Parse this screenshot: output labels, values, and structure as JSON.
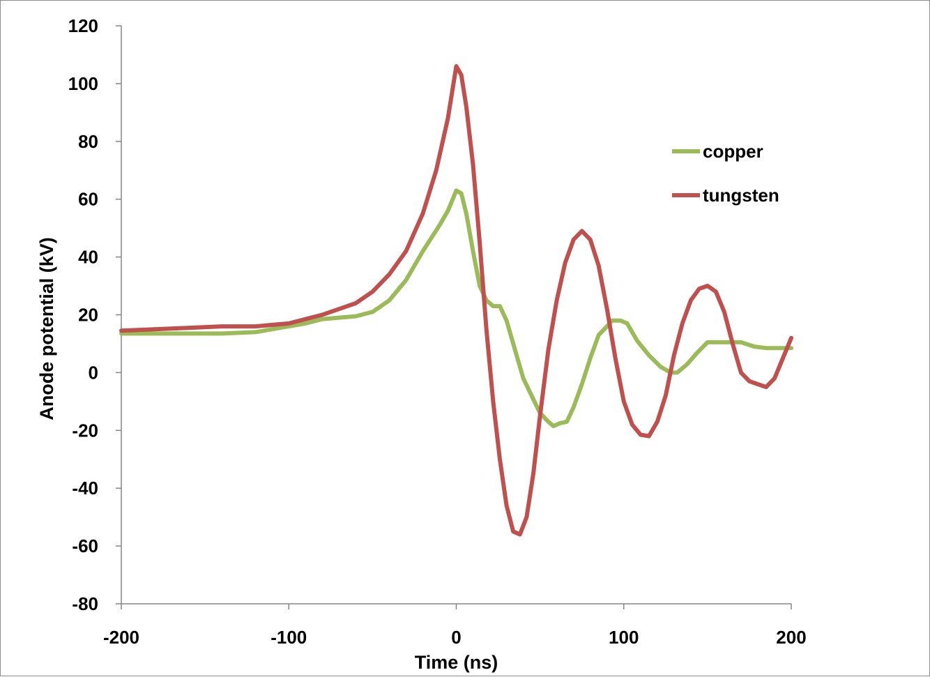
{
  "chart_data": {
    "type": "line",
    "title": "",
    "xlabel": "Time (ns)",
    "ylabel": "Anode potential (kV)",
    "xlim": [
      -200,
      200
    ],
    "ylim": [
      -80,
      120
    ],
    "x_ticks": [
      -200,
      -100,
      0,
      100,
      200
    ],
    "y_ticks": [
      -80,
      -60,
      -40,
      -20,
      0,
      20,
      40,
      60,
      80,
      100,
      120
    ],
    "x_tick_labels": [
      "-200",
      "-100",
      "0",
      "100",
      "200"
    ],
    "y_tick_labels": [
      "-80",
      "-60",
      "-40",
      "-20",
      "0",
      "20",
      "40",
      "60",
      "80",
      "100",
      "120"
    ],
    "grid": false,
    "legend_position": "right",
    "series": [
      {
        "name": "copper",
        "color": "#9bbb59",
        "points": [
          [
            -200,
            13.5
          ],
          [
            -180,
            13.5
          ],
          [
            -160,
            13.5
          ],
          [
            -140,
            13.5
          ],
          [
            -120,
            14
          ],
          [
            -100,
            16
          ],
          [
            -90,
            17
          ],
          [
            -80,
            18.5
          ],
          [
            -70,
            19
          ],
          [
            -60,
            19.5
          ],
          [
            -50,
            21
          ],
          [
            -40,
            25
          ],
          [
            -30,
            32
          ],
          [
            -20,
            42
          ],
          [
            -10,
            51
          ],
          [
            -5,
            56
          ],
          [
            0,
            63
          ],
          [
            3,
            62
          ],
          [
            6,
            55
          ],
          [
            10,
            42
          ],
          [
            14,
            30
          ],
          [
            18,
            25
          ],
          [
            22,
            23
          ],
          [
            26,
            23
          ],
          [
            30,
            18
          ],
          [
            35,
            8
          ],
          [
            40,
            -2
          ],
          [
            45,
            -8
          ],
          [
            50,
            -14
          ],
          [
            55,
            -17
          ],
          [
            58,
            -18.5
          ],
          [
            62,
            -17.5
          ],
          [
            66,
            -17
          ],
          [
            70,
            -12
          ],
          [
            75,
            -4
          ],
          [
            80,
            5
          ],
          [
            85,
            13
          ],
          [
            90,
            16
          ],
          [
            93,
            18
          ],
          [
            98,
            18
          ],
          [
            102,
            17
          ],
          [
            108,
            11
          ],
          [
            115,
            6
          ],
          [
            122,
            2
          ],
          [
            128,
            0
          ],
          [
            132,
            0
          ],
          [
            138,
            3
          ],
          [
            144,
            7
          ],
          [
            150,
            10.5
          ],
          [
            160,
            10.5
          ],
          [
            170,
            10.5
          ],
          [
            178,
            9
          ],
          [
            185,
            8.5
          ],
          [
            192,
            8.5
          ],
          [
            200,
            8.5
          ]
        ]
      },
      {
        "name": "tungsten",
        "color": "#c0504d",
        "points": [
          [
            -200,
            14.5
          ],
          [
            -180,
            15
          ],
          [
            -160,
            15.5
          ],
          [
            -140,
            16
          ],
          [
            -120,
            16
          ],
          [
            -100,
            17
          ],
          [
            -90,
            18.5
          ],
          [
            -80,
            20
          ],
          [
            -70,
            22
          ],
          [
            -60,
            24
          ],
          [
            -50,
            28
          ],
          [
            -40,
            34
          ],
          [
            -30,
            42
          ],
          [
            -20,
            55
          ],
          [
            -12,
            70
          ],
          [
            -5,
            88
          ],
          [
            0,
            106
          ],
          [
            3,
            103
          ],
          [
            6,
            92
          ],
          [
            10,
            72
          ],
          [
            14,
            45
          ],
          [
            18,
            15
          ],
          [
            22,
            -10
          ],
          [
            26,
            -30
          ],
          [
            30,
            -46
          ],
          [
            34,
            -55
          ],
          [
            38,
            -56
          ],
          [
            42,
            -50
          ],
          [
            46,
            -35
          ],
          [
            50,
            -15
          ],
          [
            55,
            8
          ],
          [
            60,
            25
          ],
          [
            65,
            38
          ],
          [
            70,
            46
          ],
          [
            75,
            49
          ],
          [
            80,
            46
          ],
          [
            85,
            37
          ],
          [
            90,
            22
          ],
          [
            95,
            5
          ],
          [
            100,
            -10
          ],
          [
            105,
            -18
          ],
          [
            110,
            -21.5
          ],
          [
            115,
            -22
          ],
          [
            120,
            -17
          ],
          [
            125,
            -8
          ],
          [
            130,
            6
          ],
          [
            135,
            17
          ],
          [
            140,
            25
          ],
          [
            145,
            29
          ],
          [
            150,
            30
          ],
          [
            155,
            28
          ],
          [
            160,
            21
          ],
          [
            165,
            10
          ],
          [
            170,
            0
          ],
          [
            175,
            -3
          ],
          [
            180,
            -4
          ],
          [
            185,
            -5
          ],
          [
            190,
            -2
          ],
          [
            195,
            5
          ],
          [
            200,
            12
          ]
        ]
      }
    ]
  }
}
